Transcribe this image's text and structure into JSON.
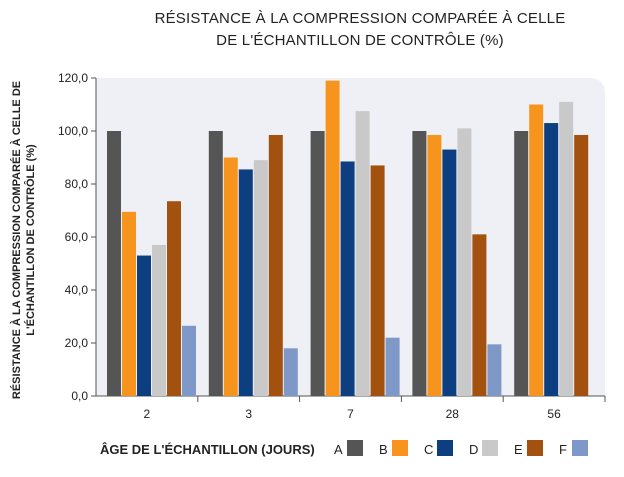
{
  "chart_data": {
    "type": "bar",
    "title": "RÉSISTANCE À LA COMPRESSION COMPARÉE À CELLE DE L'ÉCHANTILLON DE CONTRÔLE (%)",
    "title_lines": [
      "RÉSISTANCE À LA COMPRESSION COMPARÉE À CELLE",
      "DE L'ÉCHANTILLON DE CONTRÔLE (%)"
    ],
    "ylabel_lines": [
      "RÉSISTANCE À LA COMPRESSION COMPARÉE À CELLE DE",
      "L'ÉCHANTILLON DE CONTRÔLE (%)"
    ],
    "xlabel": "ÂGE DE L'ÉCHANTILLON (JOURS)",
    "categories": [
      "2",
      "3",
      "7",
      "28",
      "56"
    ],
    "ylim": [
      0,
      120
    ],
    "yticks": [
      "0,0",
      "20,0",
      "40,0",
      "60,0",
      "80,0",
      "100,0",
      "120,0"
    ],
    "grid": false,
    "legend_position": "bottom",
    "series": [
      {
        "name": "A",
        "color": "#555555",
        "values": [
          100,
          100,
          100,
          100,
          100
        ]
      },
      {
        "name": "B",
        "color": "#f7941d",
        "values": [
          69.5,
          90,
          119,
          98.5,
          110
        ]
      },
      {
        "name": "C",
        "color": "#0d3f80",
        "values": [
          53,
          85.5,
          88.5,
          93,
          103
        ]
      },
      {
        "name": "D",
        "color": "#c9c9c9",
        "values": [
          57,
          89,
          107.5,
          101,
          111
        ]
      },
      {
        "name": "E",
        "color": "#a3510e",
        "values": [
          73.5,
          98.5,
          87,
          61,
          98.5
        ]
      },
      {
        "name": "F",
        "color": "#7e99c8",
        "values": [
          26.5,
          18,
          22,
          19.5,
          0
        ]
      }
    ]
  }
}
